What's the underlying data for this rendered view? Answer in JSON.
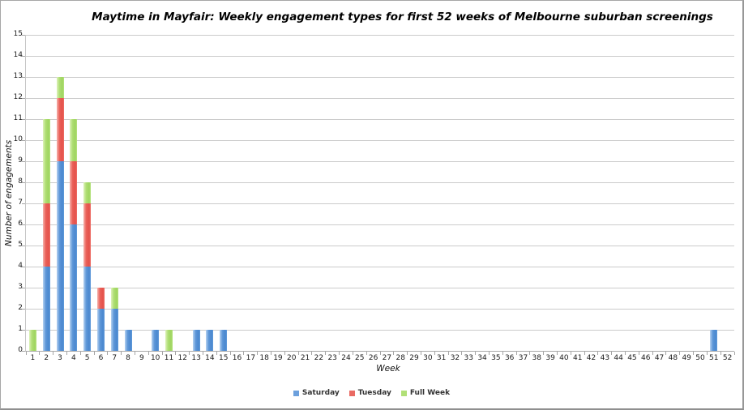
{
  "title": "Maytime in Mayfair: Weekly engagement types for first 52 weeks of Melbourne suburban screenings",
  "chart_data": {
    "type": "bar",
    "stacked": true,
    "title": "Maytime in Mayfair: Weekly engagement types for first 52 weeks of Melbourne suburban screenings",
    "xlabel": "Week",
    "ylabel": "Number of engagements",
    "ylim": [
      0,
      15
    ],
    "ytick_step": 1,
    "grid": true,
    "legend_position": "bottom",
    "categories": [
      1,
      2,
      3,
      4,
      5,
      6,
      7,
      8,
      9,
      10,
      11,
      12,
      13,
      14,
      15,
      16,
      17,
      18,
      19,
      20,
      21,
      22,
      23,
      24,
      25,
      26,
      27,
      28,
      29,
      30,
      31,
      32,
      33,
      34,
      35,
      36,
      37,
      38,
      39,
      40,
      41,
      42,
      43,
      44,
      45,
      46,
      47,
      48,
      49,
      50,
      51,
      52
    ],
    "series": [
      {
        "name": "Saturday",
        "color": "#6ca0dd",
        "values": [
          0,
          4,
          9,
          6,
          4,
          2,
          2,
          1,
          0,
          1,
          0,
          0,
          1,
          1,
          1,
          0,
          0,
          0,
          0,
          0,
          0,
          0,
          0,
          0,
          0,
          0,
          0,
          0,
          0,
          0,
          0,
          0,
          0,
          0,
          0,
          0,
          0,
          0,
          0,
          0,
          0,
          0,
          0,
          0,
          0,
          0,
          0,
          0,
          0,
          0,
          1,
          0
        ]
      },
      {
        "name": "Tuesday",
        "color": "#e96a63",
        "values": [
          0,
          3,
          3,
          3,
          3,
          1,
          0,
          0,
          0,
          0,
          0,
          0,
          0,
          0,
          0,
          0,
          0,
          0,
          0,
          0,
          0,
          0,
          0,
          0,
          0,
          0,
          0,
          0,
          0,
          0,
          0,
          0,
          0,
          0,
          0,
          0,
          0,
          0,
          0,
          0,
          0,
          0,
          0,
          0,
          0,
          0,
          0,
          0,
          0,
          0,
          0,
          0
        ]
      },
      {
        "name": "Full Week",
        "color": "#b1e077",
        "values": [
          1,
          4,
          1,
          2,
          1,
          0,
          1,
          0,
          0,
          0,
          1,
          0,
          0,
          0,
          0,
          0,
          0,
          0,
          0,
          0,
          0,
          0,
          0,
          0,
          0,
          0,
          0,
          0,
          0,
          0,
          0,
          0,
          0,
          0,
          0,
          0,
          0,
          0,
          0,
          0,
          0,
          0,
          0,
          0,
          0,
          0,
          0,
          0,
          0,
          0,
          0,
          0
        ]
      }
    ]
  }
}
